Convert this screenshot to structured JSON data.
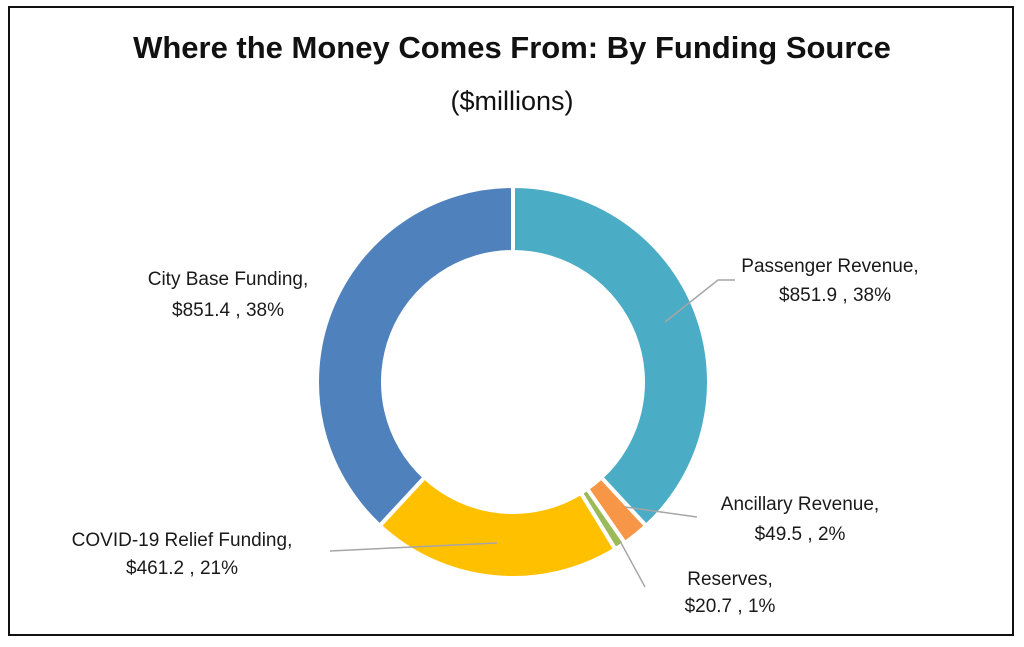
{
  "chart_data": {
    "type": "pie",
    "title": "Where the Money Comes From: By Funding Source",
    "subtitle": "($millions)",
    "slices": [
      {
        "label": "Passenger Revenue",
        "value": 851.9,
        "percent": "38%",
        "value_text": "$851.9",
        "color": "#4BACC6"
      },
      {
        "label": "Ancillary Revenue",
        "value": 49.5,
        "percent": "2%",
        "value_text": "$49.5",
        "color": "#F79646"
      },
      {
        "label": "Reserves",
        "value": 20.7,
        "percent": "1%",
        "value_text": "$20.7",
        "color": "#9BBB59"
      },
      {
        "label": "COVID-19 Relief Funding",
        "value": 461.2,
        "percent": "21%",
        "value_text": "$461.2",
        "color": "#FFC000"
      },
      {
        "label": "City Base Funding",
        "value": 851.4,
        "percent": "38%",
        "value_text": "$851.4",
        "color": "#4F81BD"
      }
    ]
  }
}
